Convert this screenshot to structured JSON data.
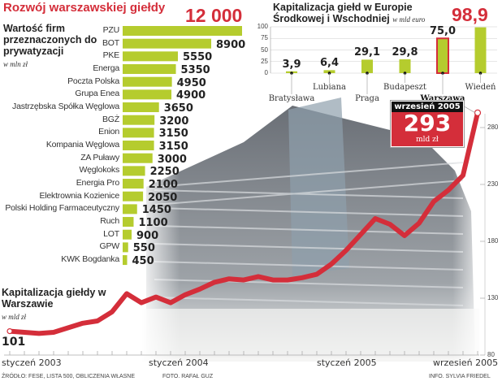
{
  "header": {
    "title": "Rozwój warszawskiej giełdy"
  },
  "colors": {
    "accent": "#d42e3a",
    "bar": "#b5cc2e",
    "line": "#d42e3a"
  },
  "chart_data": [
    {
      "type": "bar",
      "orientation": "horizontal",
      "title": "Wartość firm przeznaczonych do prywatyzacji",
      "unit": "w mln zł",
      "categories": [
        "PZU",
        "BOT",
        "PKE",
        "Energa",
        "Poczta Polska",
        "Grupa Enea",
        "Jastrzębska Spółka Węglowa",
        "BGŻ",
        "Enion",
        "Kompania Węglowa",
        "ZA Puławy",
        "Węglokoks",
        "Energia Pro",
        "Elektrownia Kozienice",
        "Polski Holding Farmaceutyczny",
        "Ruch",
        "LOT",
        "GPW",
        "KWK Bogdanka"
      ],
      "values": [
        12000,
        8900,
        5550,
        5350,
        4950,
        4900,
        3650,
        3200,
        3150,
        3150,
        3000,
        2250,
        2100,
        2050,
        1450,
        1100,
        900,
        550,
        450
      ],
      "value_labels": [
        "12 000",
        "8900",
        "5550",
        "5350",
        "4950",
        "4900",
        "3650",
        "3200",
        "3150",
        "3150",
        "3000",
        "2250",
        "2100",
        "2050",
        "1450",
        "1100",
        "900",
        "550",
        "450"
      ]
    },
    {
      "type": "bar",
      "title": "Kapitalizacja giełd w Europie Środkowej i Wschodniej",
      "unit": "w mld euro",
      "categories": [
        "Bratysława",
        "Lubiana",
        "Praga",
        "Budapeszt",
        "Warszawa",
        "Wiedeń"
      ],
      "values": [
        3.9,
        6.4,
        29.1,
        29.8,
        75.0,
        98.9
      ],
      "value_labels": [
        "3,9",
        "6,4",
        "29,1",
        "29,8",
        "75,0",
        "98,9"
      ],
      "highlight": "Warszawa",
      "ylim": [
        0,
        100
      ],
      "yticks": [
        "0",
        "25",
        "50",
        "75",
        "100"
      ]
    },
    {
      "type": "line",
      "title": "Kapitalizacja giełdy w Warszawie",
      "unit": "w mld zł",
      "x_start": "styczeń 2003",
      "x_end": "wrzesień 2005",
      "xtick_labels": [
        "styczeń 2003",
        "styczeń 2004",
        "styczeń 2005",
        "wrzesień 2005"
      ],
      "values": [
        101,
        100,
        99,
        100,
        104,
        108,
        110,
        118,
        134,
        126,
        131,
        126,
        133,
        138,
        144,
        147,
        146,
        149,
        146,
        146,
        148,
        151,
        160,
        172,
        186,
        200,
        195,
        185,
        196,
        215,
        225,
        238,
        293
      ],
      "ylim": [
        80,
        300
      ],
      "yticks": [
        "80",
        "130",
        "180",
        "230",
        "280"
      ],
      "start_label": "101",
      "callout": {
        "date": "wrzesień 2005",
        "value": "293",
        "unit": "mld zł"
      }
    }
  ],
  "footer": {
    "source": "ŹRÓDŁO: FESE, LISTA 500, OBLICZENIA WŁASNE",
    "photo": "FOTO. RAFAŁ GUZ",
    "info": "INFO. SYLVIA FRIEDEL"
  }
}
